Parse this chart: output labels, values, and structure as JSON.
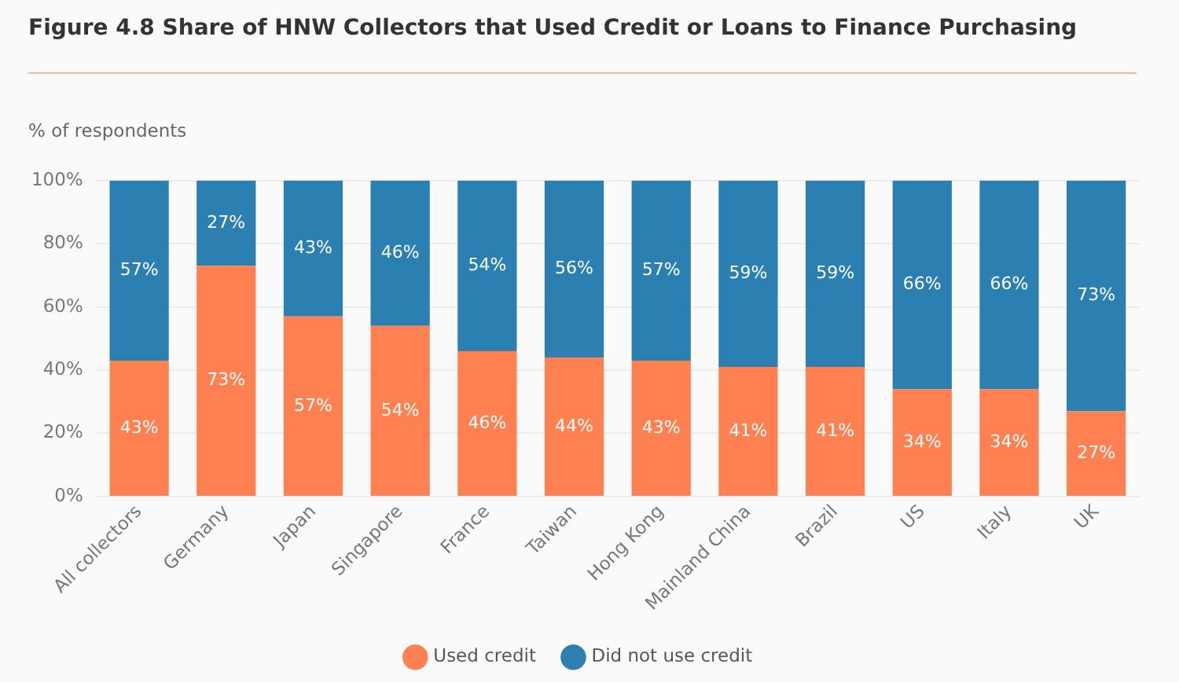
{
  "chart_data": {
    "type": "bar",
    "title": "Figure 4.8 Share of HNW Collectors that Used Credit or Loans to Finance Purchasing",
    "ylabel": "% of respondents",
    "categories": [
      "All collectors",
      "Germany",
      "Japan",
      "Singapore",
      "France",
      "Taiwan",
      "Hong Kong",
      "Mainland China",
      "Brazil",
      "US",
      "Italy",
      "UK"
    ],
    "stacked": true,
    "series": [
      {
        "name": "Used credit",
        "color": "#ff8050",
        "values": [
          43,
          73,
          57,
          54,
          46,
          44,
          43,
          41,
          41,
          34,
          34,
          27
        ],
        "value_labels": [
          "43%",
          "73%",
          "57%",
          "54%",
          "46%",
          "44%",
          "43%",
          "41%",
          "41%",
          "34%",
          "34%",
          "27%"
        ]
      },
      {
        "name": "Did not use credit",
        "color": "#2b80b1",
        "values": [
          57,
          27,
          43,
          46,
          54,
          56,
          57,
          59,
          59,
          66,
          66,
          73
        ],
        "value_labels": [
          "57%",
          "27%",
          "43%",
          "46%",
          "54%",
          "56%",
          "57%",
          "59%",
          "59%",
          "66%",
          "66%",
          "73%"
        ]
      }
    ],
    "ylim": [
      0,
      100
    ],
    "yticks": [
      {
        "value": 0,
        "label": "0%"
      },
      {
        "value": 20,
        "label": "20%"
      },
      {
        "value": 40,
        "label": "40%"
      },
      {
        "value": 60,
        "label": "60%"
      },
      {
        "value": 80,
        "label": "80%"
      },
      {
        "value": 100,
        "label": "100%"
      }
    ],
    "grid": "y",
    "legend": "bottom"
  }
}
